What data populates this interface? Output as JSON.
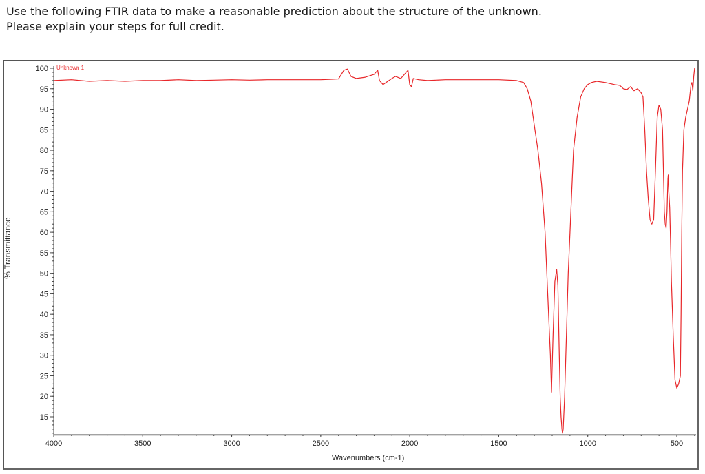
{
  "question": {
    "line1": "Use the following FTIR data to make a reasonable prediction about the structure of the unknown.",
    "line2": "Please explain your steps for full credit."
  },
  "colors": {
    "spectrum": "#e8272a",
    "axis": "#444444",
    "frame": "#555555"
  },
  "chart_data": {
    "type": "line",
    "title": "",
    "legend": [
      "Unknown 1"
    ],
    "xlabel": "Wavenumbers (cm-1)",
    "ylabel": "% Transmittance",
    "xlim": [
      4000,
      400
    ],
    "ylim": [
      10.5,
      101
    ],
    "x_reversed": true,
    "x_ticks": [
      4000,
      3500,
      3000,
      2500,
      2000,
      1500,
      1000,
      500
    ],
    "y_ticks": [
      100,
      95,
      90,
      85,
      80,
      75,
      70,
      65,
      60,
      55,
      50,
      45,
      40,
      35,
      30,
      25,
      20,
      15
    ],
    "grid": false,
    "series": [
      {
        "name": "Unknown 1",
        "x": [
          4000,
          3900,
          3800,
          3700,
          3600,
          3500,
          3400,
          3300,
          3200,
          3100,
          3000,
          2900,
          2800,
          2700,
          2600,
          2500,
          2450,
          2400,
          2370,
          2350,
          2330,
          2300,
          2250,
          2200,
          2180,
          2170,
          2150,
          2100,
          2080,
          2050,
          2020,
          2010,
          2000,
          1990,
          1980,
          1950,
          1900,
          1800,
          1700,
          1600,
          1500,
          1400,
          1360,
          1340,
          1320,
          1300,
          1280,
          1260,
          1240,
          1225,
          1210,
          1204,
          1195,
          1185,
          1175,
          1168,
          1160,
          1155,
          1150,
          1145,
          1142,
          1138,
          1130,
          1120,
          1110,
          1100,
          1090,
          1080,
          1060,
          1040,
          1020,
          1000,
          980,
          950,
          900,
          850,
          820,
          800,
          780,
          760,
          740,
          720,
          700,
          690,
          680,
          670,
          660,
          650,
          640,
          636,
          630,
          620,
          610,
          600,
          590,
          580,
          575,
          570,
          565,
          560,
          555,
          550,
          548,
          545,
          540,
          535,
          530,
          520,
          510,
          500,
          490,
          480,
          476,
          472,
          468,
          460,
          450,
          440,
          430,
          420,
          415,
          410,
          405,
          400
        ],
        "y": [
          97,
          97.2,
          96.8,
          97,
          96.8,
          97,
          97,
          97.2,
          97,
          97.1,
          97.2,
          97.1,
          97.2,
          97.2,
          97.2,
          97.2,
          97.3,
          97.4,
          99.5,
          99.8,
          98,
          97.5,
          97.8,
          98.5,
          99.5,
          97,
          96,
          97.5,
          98,
          97.5,
          99,
          99.5,
          96,
          95.5,
          97.5,
          97.2,
          97,
          97.2,
          97.2,
          97.2,
          97.2,
          97,
          96.5,
          95,
          92,
          86,
          80,
          72,
          60,
          45,
          30,
          21,
          35,
          48,
          51,
          47,
          30,
          20,
          15,
          12,
          11,
          12,
          20,
          35,
          50,
          60,
          70,
          80,
          88,
          93,
          95,
          96,
          96.5,
          96.8,
          96.5,
          96,
          95.8,
          95,
          94.8,
          95.5,
          94.5,
          95,
          94,
          93,
          85,
          75,
          68,
          63,
          62,
          62.5,
          63,
          75,
          88,
          91,
          90,
          85,
          75,
          65,
          62,
          61,
          65,
          73,
          74,
          70,
          66,
          58,
          48,
          35,
          24,
          22,
          23,
          25,
          40,
          60,
          75,
          85,
          88,
          90,
          92,
          96,
          96.5,
          94.5,
          98,
          100
        ]
      }
    ],
    "annotations": []
  }
}
